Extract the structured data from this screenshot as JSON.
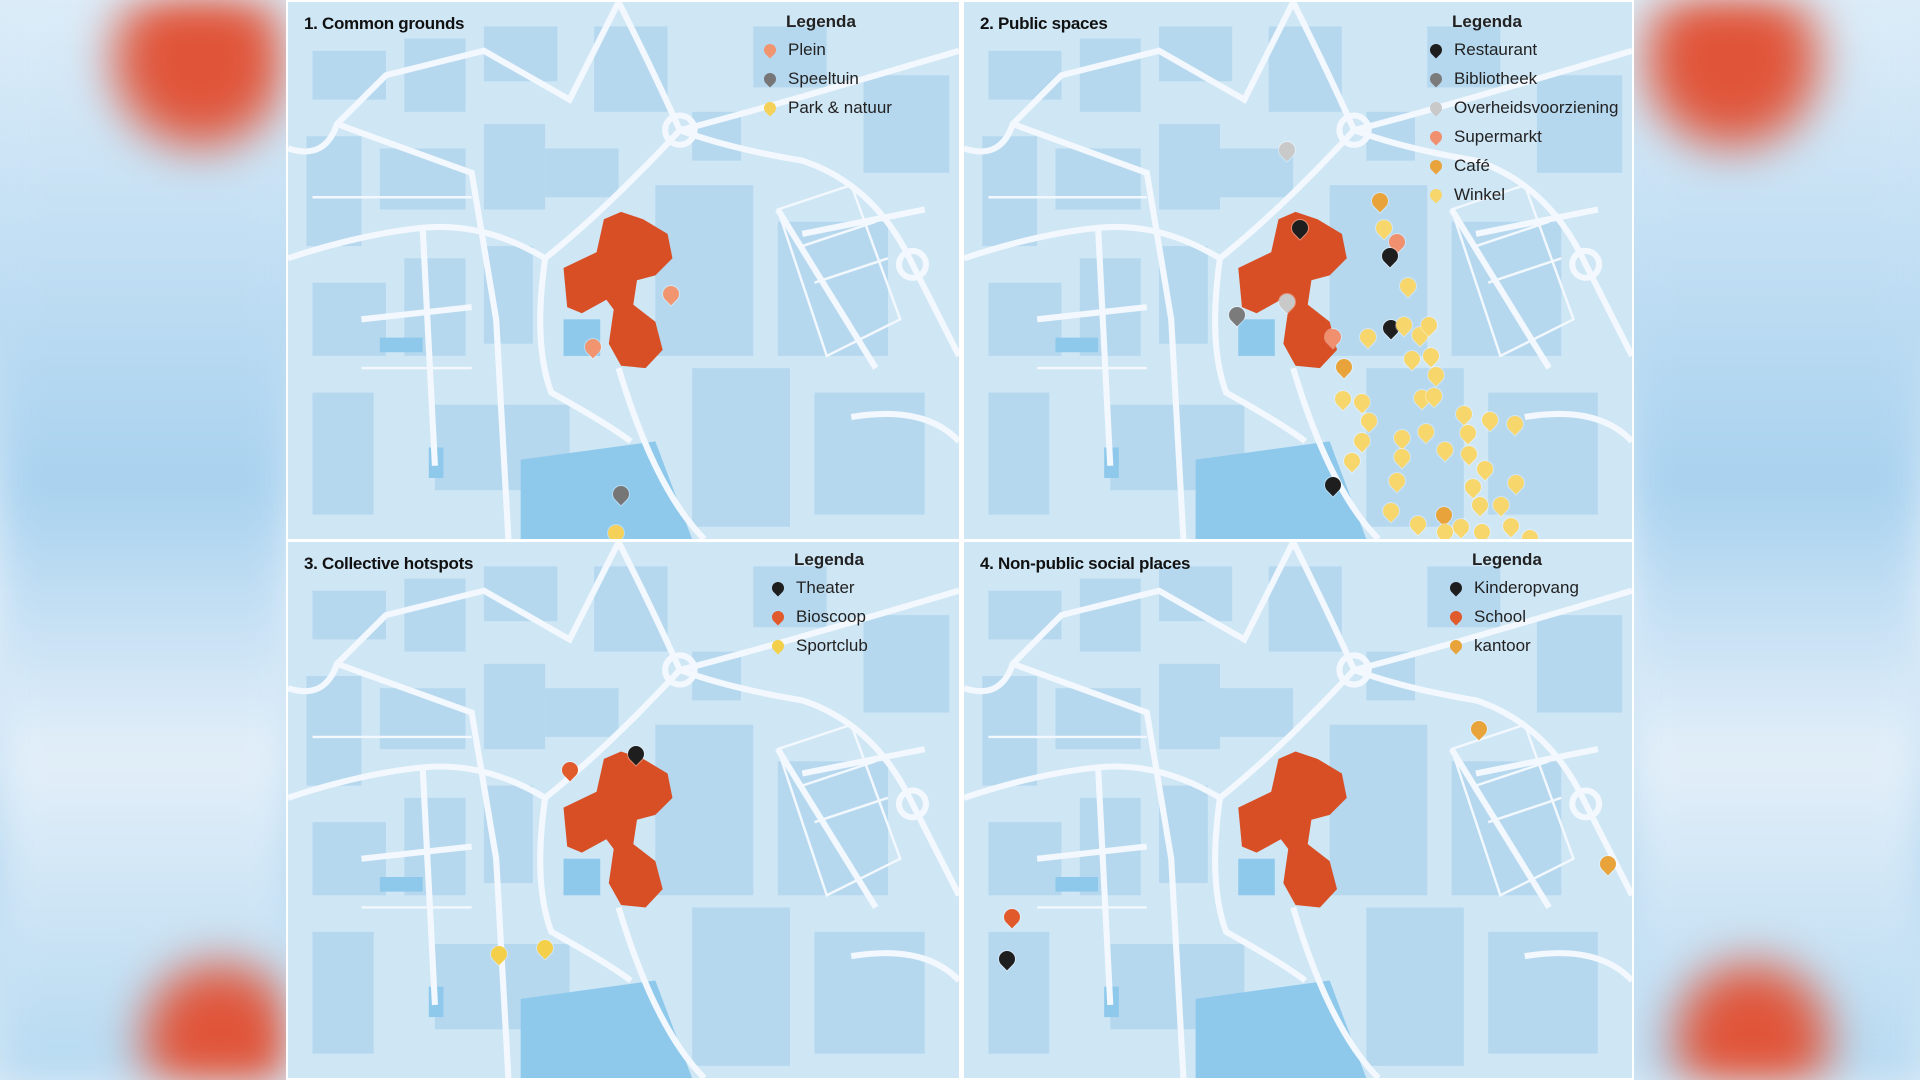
{
  "legend_title": "Legenda",
  "colors": {
    "map_bg": "#cfe6f5",
    "blocks": "#b6d8ef",
    "roads": "#f2f8fd",
    "water": "#8ec9ec",
    "building": "#d84f26"
  },
  "panels": [
    {
      "title": "1. Common grounds",
      "items": [
        {
          "label": "Plein",
          "color": "#f0956f"
        },
        {
          "label": "Speeltuin",
          "color": "#767676"
        },
        {
          "label": "Park & natuur",
          "color": "#f5d15a"
        }
      ]
    },
    {
      "title": "2. Public spaces",
      "items": [
        {
          "label": "Restaurant",
          "color": "#1e1e1e"
        },
        {
          "label": "Bibliotheek",
          "color": "#7b7b7b"
        },
        {
          "label": "Overheidsvoorziening",
          "color": "#c9c9c9"
        },
        {
          "label": "Supermarkt",
          "color": "#f0906f"
        },
        {
          "label": "Café",
          "color": "#e8a43a"
        },
        {
          "label": "Winkel",
          "color": "#f7d66c"
        }
      ]
    },
    {
      "title": "3. Collective hotspots",
      "items": [
        {
          "label": "Theater",
          "color": "#1e1e1e"
        },
        {
          "label": "Bioscoop",
          "color": "#e05a2b"
        },
        {
          "label": "Sportclub",
          "color": "#f3cf4a"
        }
      ]
    },
    {
      "title": "4. Non-public social places",
      "items": [
        {
          "label": "Kinderopvang",
          "color": "#1e1e1e"
        },
        {
          "label": "School",
          "color": "#e05a2b"
        },
        {
          "label": "kantoor",
          "color": "#e8a43a"
        }
      ]
    }
  ]
}
